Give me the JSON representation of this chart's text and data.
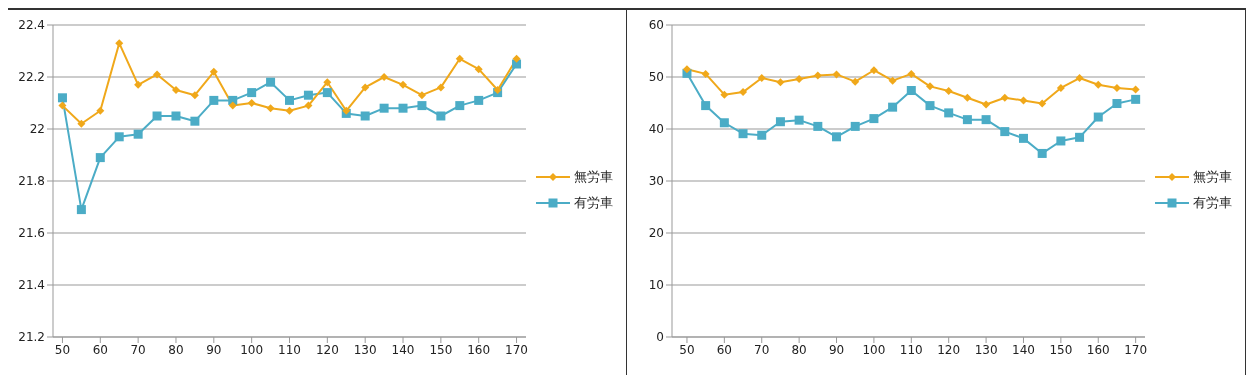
{
  "chart_data": [
    {
      "type": "line",
      "x": [
        50,
        55,
        60,
        65,
        70,
        75,
        80,
        85,
        90,
        95,
        100,
        105,
        110,
        115,
        120,
        125,
        130,
        135,
        140,
        145,
        150,
        155,
        160,
        165,
        170
      ],
      "xlim": [
        47.5,
        172.5
      ],
      "xticks": [
        50,
        60,
        70,
        80,
        90,
        100,
        110,
        120,
        130,
        140,
        150,
        160,
        170
      ],
      "ylim": [
        21.2,
        22.4
      ],
      "yticks": [
        21.2,
        21.4,
        21.6,
        21.8,
        22,
        22.2,
        22.4
      ],
      "grid": "y",
      "legend": "right",
      "series": [
        {
          "name": "無労車",
          "color": "#f0a81a",
          "marker": "diamond",
          "values": [
            22.09,
            22.02,
            22.07,
            22.33,
            22.17,
            22.21,
            22.15,
            22.13,
            22.22,
            22.09,
            22.1,
            22.08,
            22.07,
            22.09,
            22.18,
            22.07,
            22.16,
            22.2,
            22.17,
            22.13,
            22.16,
            22.27,
            22.23,
            22.15,
            22.27
          ]
        },
        {
          "name": "有労車",
          "color": "#4bacc6",
          "marker": "square",
          "values": [
            22.12,
            21.69,
            21.89,
            21.97,
            21.98,
            22.05,
            22.05,
            22.03,
            22.11,
            22.11,
            22.14,
            22.18,
            22.11,
            22.13,
            22.14,
            22.06,
            22.05,
            22.08,
            22.08,
            22.09,
            22.05,
            22.09,
            22.11,
            22.14,
            22.25
          ]
        }
      ]
    },
    {
      "type": "line",
      "x": [
        50,
        55,
        60,
        65,
        70,
        75,
        80,
        85,
        90,
        95,
        100,
        105,
        110,
        115,
        120,
        125,
        130,
        135,
        140,
        145,
        150,
        155,
        160,
        165,
        170
      ],
      "xlim": [
        46,
        172.5
      ],
      "xticks": [
        50,
        60,
        70,
        80,
        90,
        100,
        110,
        120,
        130,
        140,
        150,
        160,
        170
      ],
      "ylim": [
        0,
        60
      ],
      "yticks": [
        0,
        10,
        20,
        30,
        40,
        50,
        60
      ],
      "grid": "y",
      "legend": "right",
      "series": [
        {
          "name": "無労車",
          "color": "#f0a81a",
          "marker": "diamond",
          "values": [
            51.5,
            50.6,
            46.6,
            47.1,
            49.8,
            49,
            49.6,
            50.3,
            50.5,
            49.1,
            51.3,
            49.3,
            50.6,
            48.2,
            47.3,
            46,
            44.7,
            46,
            45.5,
            44.9,
            47.9,
            49.8,
            48.5,
            47.9,
            47.6
          ]
        },
        {
          "name": "有労車",
          "color": "#4bacc6",
          "marker": "square",
          "values": [
            50.7,
            44.5,
            41.2,
            39.1,
            38.8,
            41.4,
            41.7,
            40.5,
            38.5,
            40.5,
            42,
            44.2,
            47.4,
            44.5,
            43.1,
            41.8,
            41.8,
            39.5,
            38.2,
            35.3,
            37.7,
            38.4,
            42.3,
            44.9,
            45.7
          ]
        }
      ]
    }
  ]
}
